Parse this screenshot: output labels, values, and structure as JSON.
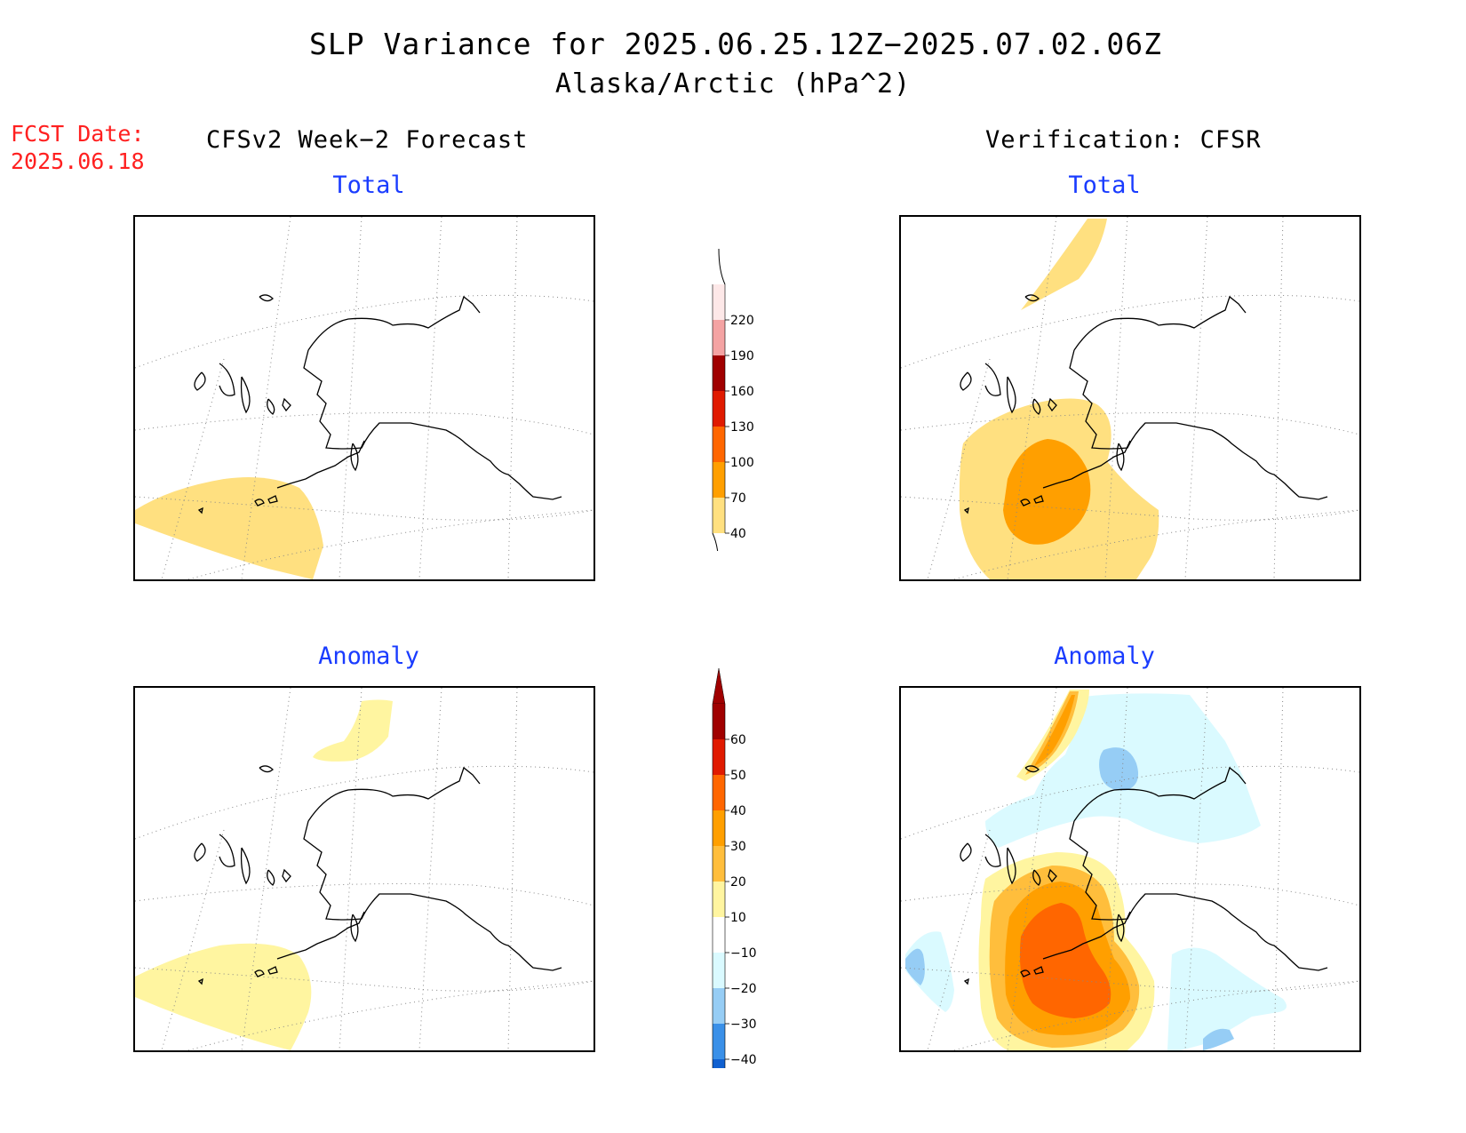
{
  "title": "SLP Variance for 2025.06.25.12Z−2025.07.02.06Z",
  "subtitle": "Alaska/Arctic (hPa^2)",
  "fcst_label": "FCST Date:",
  "fcst_date": "2025.06.18",
  "left_column_title": "CFSv2 Week−2 Forecast",
  "right_column_title": "Verification: CFSR",
  "panels": {
    "forecast_total": {
      "title": "Total"
    },
    "verification_total": {
      "title": "Total"
    },
    "forecast_anomaly": {
      "title": "Anomaly"
    },
    "verification_anomaly": {
      "title": "Anomaly"
    }
  },
  "colorbar_total": {
    "labels": [
      "220",
      "190",
      "160",
      "130",
      "100",
      "70",
      "40"
    ],
    "colors": [
      "#fde8e8",
      "#f4a3a3",
      "#a00000",
      "#e01a00",
      "#ff6600",
      "#ff9f00",
      "#ffe080"
    ]
  },
  "colorbar_anomaly": {
    "labels": [
      "60",
      "50",
      "40",
      "30",
      "20",
      "10",
      "−10",
      "−20",
      "−30",
      "−40"
    ],
    "colors": [
      "#a00000",
      "#e01a00",
      "#ff6600",
      "#ff9f00",
      "#ffbe3c",
      "#fff5a0",
      "#ffffff",
      "#dafaff",
      "#96cdf5",
      "#3a90e8",
      "#1060d0"
    ]
  }
}
